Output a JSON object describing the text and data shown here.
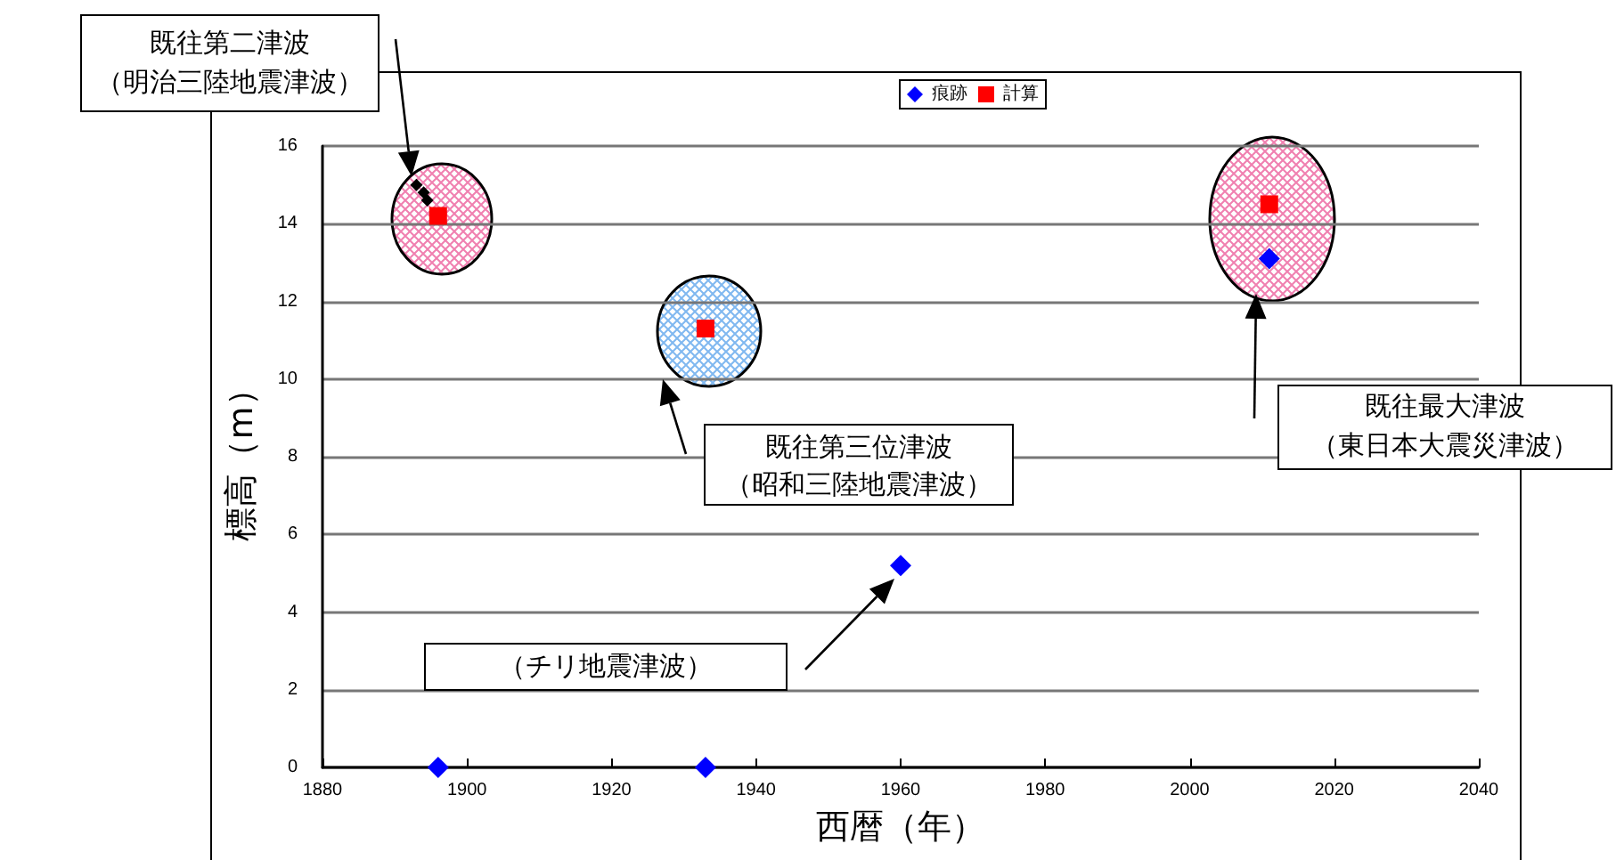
{
  "chart_data": {
    "type": "scatter",
    "xlabel": "西暦（年）",
    "ylabel": "標高（m）",
    "xlim": [
      1880,
      2040
    ],
    "xticks": [
      1880,
      1900,
      1920,
      1940,
      1960,
      1980,
      2000,
      2020,
      2040
    ],
    "ylim": [
      0,
      16
    ],
    "yticks": [
      0,
      2,
      4,
      6,
      8,
      10,
      12,
      14,
      16
    ],
    "grid": "y",
    "legend": "top",
    "series": [
      {
        "name": "痕跡",
        "color": "#0000ff",
        "marker": "diamond",
        "x": [
          1896,
          1933,
          1960,
          2011
        ],
        "values": [
          0,
          0,
          5.2,
          13.1
        ]
      },
      {
        "name": "計算",
        "color": "#ff0000",
        "marker": "square",
        "x": [
          1896,
          1933,
          2011
        ],
        "values": [
          14.2,
          11.3,
          14.5
        ]
      },
      {
        "color": "#000000",
        "marker": "diamond",
        "x": [
          1893,
          1894,
          1894.5
        ],
        "values": [
          15.0,
          14.8,
          14.6
        ]
      }
    ],
    "annotations": [
      "既往第二津波",
      "（明治三陸地震津波）",
      "既往第三位津波",
      "（昭和三陸地震津波）",
      "（チリ地震津波）",
      "既往最大津波",
      "（東日本大震災津波）"
    ]
  }
}
